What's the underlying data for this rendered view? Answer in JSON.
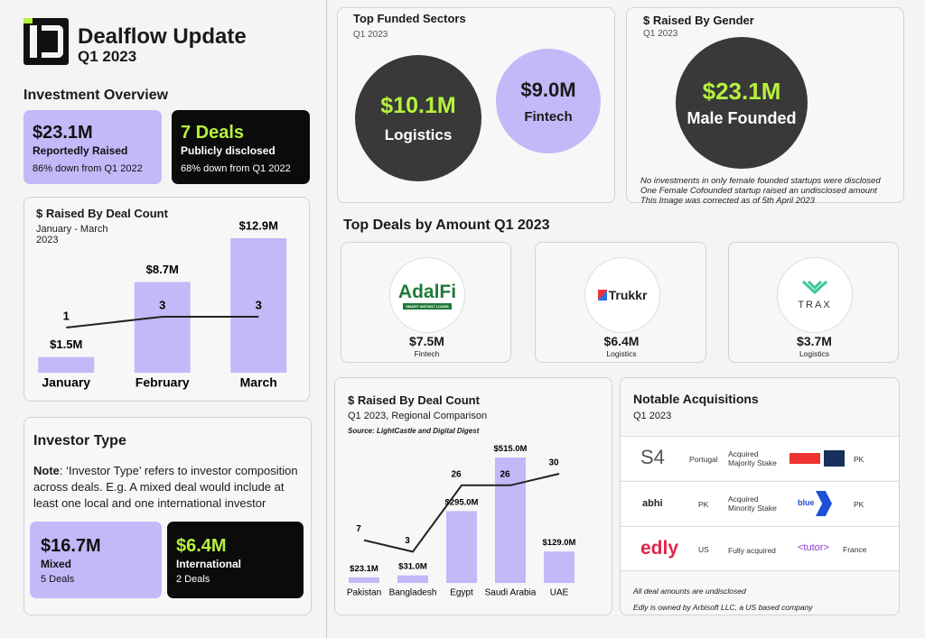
{
  "header": {
    "title": "Dealflow Update",
    "subtitle": "Q1 2023"
  },
  "investment_overview": {
    "title": "Investment Overview",
    "cards": [
      {
        "value": "$23.1M",
        "label": "Reportedly Raised",
        "note": "86% down from Q1 2022"
      },
      {
        "value": "7 Deals",
        "label": "Publicly disclosed",
        "note": "68% down from Q1 2022"
      }
    ]
  },
  "chart_data": [
    {
      "type": "bar",
      "title": "$ Raised By Deal Count",
      "subtitle": "January - March 2023",
      "categories": [
        "January",
        "February",
        "March"
      ],
      "series": [
        {
          "type": "bar",
          "color": "#c4b8f8",
          "values": [
            1.5,
            8.7,
            12.9
          ],
          "value_labels": [
            "$1.5M",
            "$8.7M",
            "$12.9M"
          ]
        },
        {
          "type": "line",
          "color": "#222222",
          "values": [
            1,
            3,
            3
          ]
        }
      ]
    },
    {
      "type": "bar",
      "title": "$ Raised By Deal Count",
      "subtitle": "Q1 2023, Regional Comparison",
      "source": "Source: LightCastle and Digital Digest",
      "categories": [
        "Pakistan",
        "Bangladesh",
        "Egypt",
        "Saudi Arabia",
        "UAE"
      ],
      "series": [
        {
          "type": "bar",
          "color": "#c4b8f8",
          "values": [
            23.1,
            31.0,
            295.0,
            515.0,
            129.0
          ],
          "value_labels": [
            "$23.1M",
            "$31.0M",
            "$295.0M",
            "$515.0M",
            "$129.0M"
          ]
        },
        {
          "type": "line",
          "color": "#222222",
          "values": [
            7,
            3,
            26,
            26,
            30
          ]
        }
      ]
    }
  ],
  "investor_type": {
    "title": "Investor Type",
    "note_label": "Note",
    "note_text": ": ‘Investor Type’ refers to investor composition across deals. E.g. A mixed deal would include at least one local and one international investor",
    "cards": [
      {
        "value": "$16.7M",
        "label": "Mixed",
        "note": "5 Deals"
      },
      {
        "value": "$6.4M",
        "label": "International",
        "note": "2 Deals"
      }
    ]
  },
  "top_sectors": {
    "title": "Top Funded Sectors",
    "subtitle": "Q1 2023",
    "sectors": [
      {
        "amount": "$10.1M",
        "name": "Logistics"
      },
      {
        "amount": "$9.0M",
        "name": "Fintech"
      }
    ]
  },
  "gender": {
    "title": "$ Raised By Gender",
    "subtitle": "Q1 2023",
    "amount": "$23.1M",
    "label": "Male Founded",
    "notes": [
      "No investments in only female founded startups were disclosed",
      "One Female Cofounded startup raised an undisclosed amount",
      "This Image was corrected as of 5th April 2023"
    ]
  },
  "top_deals": {
    "title": "Top Deals by Amount Q1 2023",
    "deals": [
      {
        "logo": "AdalFi",
        "tagline": "SMART INSTANT LOANS",
        "amount": "$7.5M",
        "sector": "Fintech"
      },
      {
        "logo": "Trukkr",
        "amount": "$6.4M",
        "sector": "Logistics"
      },
      {
        "logo": "TRAX",
        "amount": "$3.7M",
        "sector": "Logistics"
      }
    ]
  },
  "acquisitions": {
    "title": "Notable Acquisitions",
    "subtitle": "Q1 2023",
    "rows": [
      {
        "acquirer": "S4",
        "acquirer_country": "Portugal",
        "deal": "Acquired Majority Stake",
        "target_country": "PK"
      },
      {
        "acquirer": "abhi",
        "acquirer_country": "PK",
        "deal": "Acquired Minority Stake",
        "target": "blue",
        "target_country": "PK"
      },
      {
        "acquirer": "edly",
        "acquirer_country": "US",
        "deal": "Fully acquired",
        "target": "<tutor>",
        "target_country": "France"
      }
    ],
    "notes": [
      "All deal amounts are undisclosed",
      "Edly is owned by Arbisoft LLC, a US based company"
    ]
  }
}
